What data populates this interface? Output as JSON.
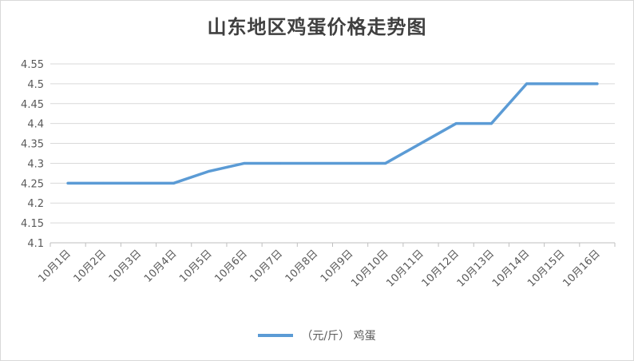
{
  "chart_data": {
    "type": "line",
    "title": "山东地区鸡蛋价格走势图",
    "categories": [
      "10月1日",
      "10月2日",
      "10月3日",
      "10月4日",
      "10月5日",
      "10月6日",
      "10月7日",
      "10月8日",
      "10月9日",
      "10月10日",
      "10月11日",
      "10月12日",
      "10月13日",
      "10月14日",
      "10月15日",
      "10月16日"
    ],
    "series": [
      {
        "name": "（元/斤） 鸡蛋",
        "color": "#5b9bd5",
        "values": [
          4.25,
          4.25,
          4.25,
          4.25,
          4.28,
          4.3,
          4.3,
          4.3,
          4.3,
          4.3,
          4.35,
          4.4,
          4.4,
          4.5,
          4.5,
          4.5
        ]
      }
    ],
    "ylim": [
      4.1,
      4.55
    ],
    "yticks": [
      "4.1",
      "4.15",
      "4.2",
      "4.25",
      "4.3",
      "4.35",
      "4.4",
      "4.45",
      "4.5",
      "4.55"
    ],
    "grid": true,
    "legend_position": "bottom"
  }
}
